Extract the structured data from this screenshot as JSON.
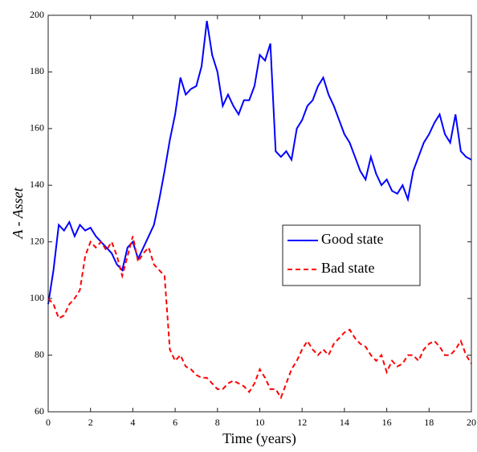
{
  "chart_data": {
    "type": "line",
    "xlabel": "Time (years)",
    "ylabel": "A - Asset",
    "x": [
      0,
      0.25,
      0.5,
      0.75,
      1,
      1.25,
      1.5,
      1.75,
      2,
      2.25,
      2.5,
      2.75,
      3,
      3.25,
      3.5,
      3.75,
      4,
      4.25,
      4.5,
      4.75,
      5,
      5.25,
      5.5,
      5.75,
      6,
      6.25,
      6.5,
      6.75,
      7,
      7.25,
      7.5,
      7.75,
      8,
      8.25,
      8.5,
      8.75,
      9,
      9.25,
      9.5,
      9.75,
      10,
      10.25,
      10.5,
      10.75,
      11,
      11.25,
      11.5,
      11.75,
      12,
      12.25,
      12.5,
      12.75,
      13,
      13.25,
      13.5,
      13.75,
      14,
      14.25,
      14.5,
      14.75,
      15,
      15.25,
      15.5,
      15.75,
      16,
      16.25,
      16.5,
      16.75,
      17,
      17.25,
      17.5,
      17.75,
      18,
      18.25,
      18.5,
      18.75,
      19,
      19.25,
      19.5,
      19.75,
      20
    ],
    "series": [
      {
        "name": "Good state",
        "color": "#0000ff",
        "line_style": "solid",
        "values": [
          98,
          110,
          126,
          124,
          127,
          122,
          126,
          124,
          125,
          122,
          120,
          118,
          116,
          112,
          110,
          118,
          120,
          114,
          118,
          122,
          126,
          135,
          145,
          156,
          165,
          178,
          172,
          174,
          175,
          182,
          198,
          186,
          180,
          168,
          172,
          168,
          165,
          170,
          170,
          175,
          186,
          184,
          190,
          152,
          150,
          152,
          149,
          160,
          163,
          168,
          170,
          175,
          178,
          172,
          168,
          163,
          158,
          155,
          150,
          145,
          142,
          150,
          144,
          140,
          142,
          138,
          137,
          140,
          135,
          145,
          150,
          155,
          158,
          162,
          165,
          158,
          155,
          165,
          152,
          150,
          149
        ]
      },
      {
        "name": "Bad state",
        "color": "#ff0000",
        "line_style": "dashed",
        "values": [
          100,
          98,
          93,
          94,
          98,
          100,
          103,
          115,
          120,
          118,
          120,
          117,
          120,
          115,
          108,
          115,
          122,
          113,
          116,
          118,
          112,
          110,
          108,
          82,
          78,
          80,
          76,
          75,
          73,
          72,
          72,
          70,
          68,
          68,
          70,
          71,
          70,
          69,
          67,
          70,
          75,
          72,
          68,
          68,
          65,
          70,
          75,
          78,
          82,
          85,
          82,
          80,
          82,
          80,
          84,
          86,
          88,
          89,
          86,
          84,
          83,
          80,
          78,
          80,
          74,
          78,
          76,
          77,
          80,
          80,
          78,
          82,
          84,
          85,
          83,
          80,
          80,
          82,
          85,
          80,
          77
        ]
      }
    ],
    "xlim": [
      0,
      20
    ],
    "xticks": [
      0,
      2,
      4,
      6,
      8,
      10,
      12,
      14,
      16,
      18,
      20
    ],
    "ylim": [
      60,
      200
    ],
    "yticks": [
      60,
      80,
      100,
      120,
      140,
      160,
      180,
      200
    ],
    "grid": false,
    "legend": "right"
  }
}
